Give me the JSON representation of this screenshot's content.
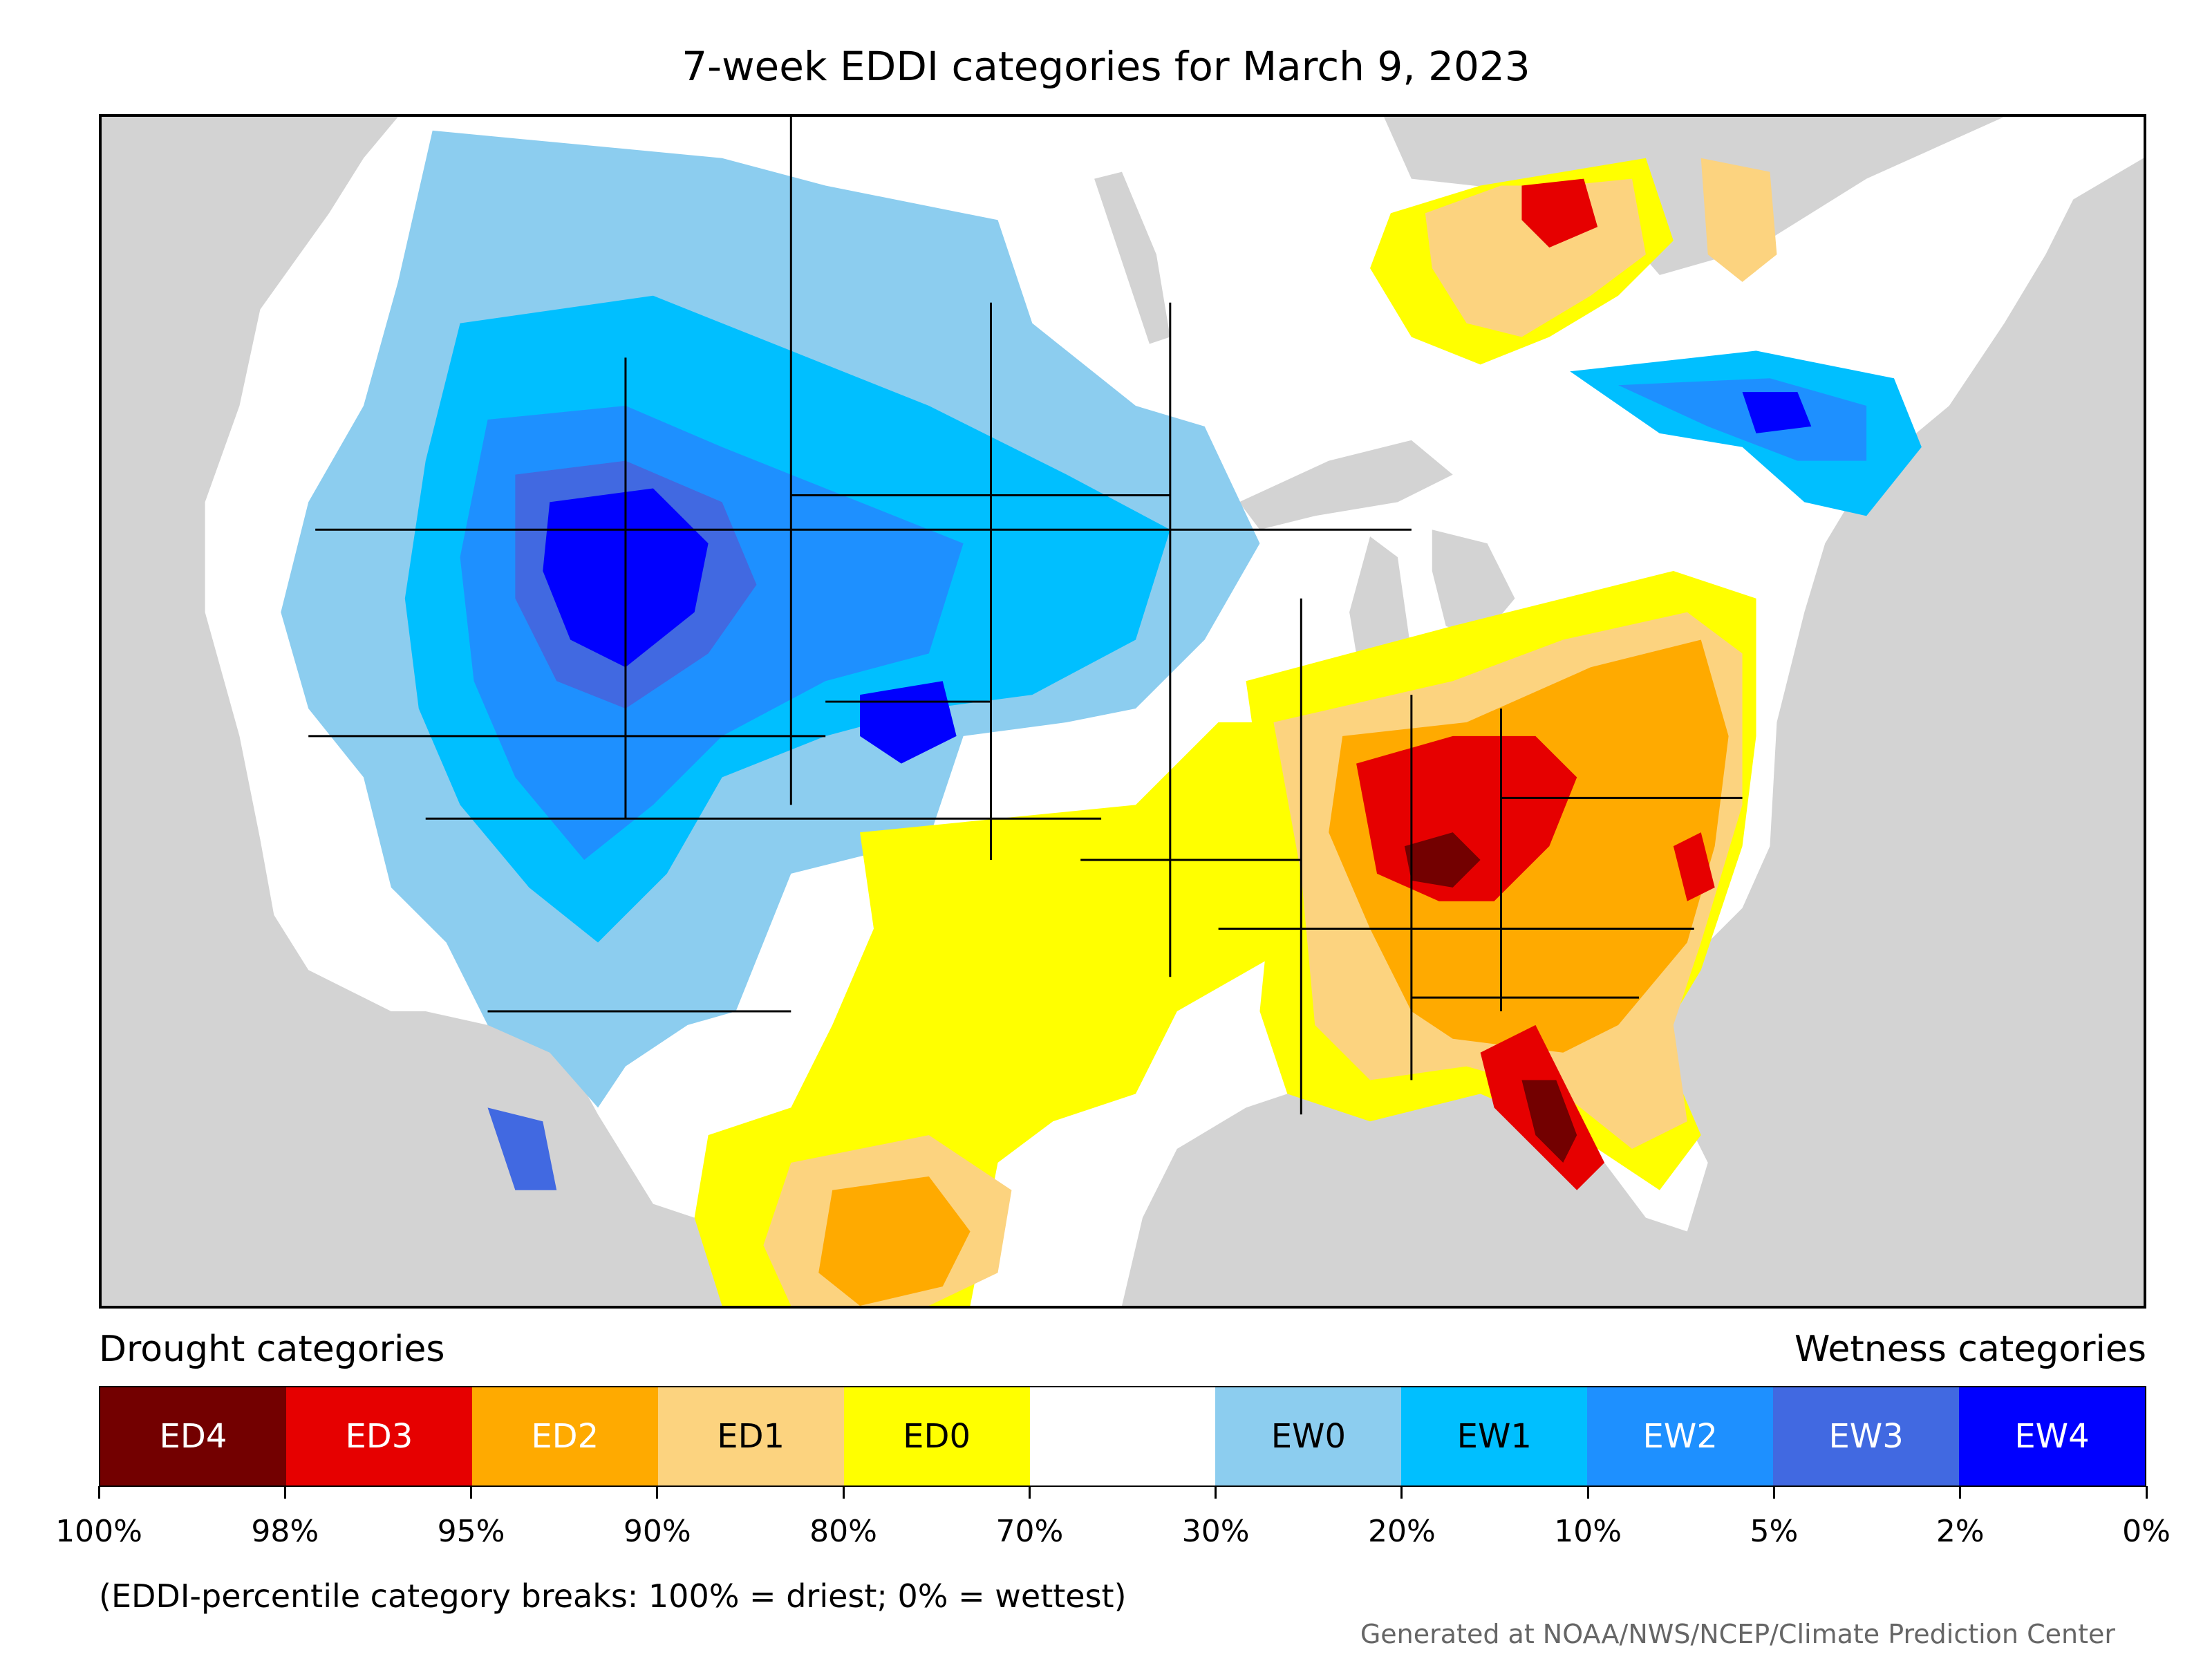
{
  "title": "7-week EDDI categories for March 9, 2023",
  "legend": {
    "drought_heading": "Drought categories",
    "wetness_heading": "Wetness categories",
    "categories": [
      {
        "label": "ED4",
        "color": "#730000",
        "text_color": "#ffffff"
      },
      {
        "label": "ED3",
        "color": "#e60000",
        "text_color": "#ffffff"
      },
      {
        "label": "ED2",
        "color": "#ffaa00",
        "text_color": "#ffffff"
      },
      {
        "label": "ED1",
        "color": "#fcd37f",
        "text_color": "#000000"
      },
      {
        "label": "ED0",
        "color": "#ffff00",
        "text_color": "#000000"
      },
      {
        "label": "",
        "color": "#ffffff",
        "text_color": "#000000"
      },
      {
        "label": "EW0",
        "color": "#8ccdef",
        "text_color": "#000000"
      },
      {
        "label": "EW1",
        "color": "#00bfff",
        "text_color": "#000000"
      },
      {
        "label": "EW2",
        "color": "#1e90ff",
        "text_color": "#ffffff"
      },
      {
        "label": "EW3",
        "color": "#4169e1",
        "text_color": "#ffffff"
      },
      {
        "label": "EW4",
        "color": "#0000ff",
        "text_color": "#ffffff"
      }
    ],
    "ticks": [
      "100%",
      "98%",
      "95%",
      "90%",
      "80%",
      "70%",
      "30%",
      "20%",
      "10%",
      "5%",
      "2%",
      "0%"
    ]
  },
  "note": "(EDDI-percentile category breaks: 100% = driest; 0% = wettest)",
  "credit": "Generated at NOAA/NWS/NCEP/Climate Prediction Center",
  "map": {
    "background_color": "#d3d3d3",
    "land_color": "#ffffff"
  }
}
